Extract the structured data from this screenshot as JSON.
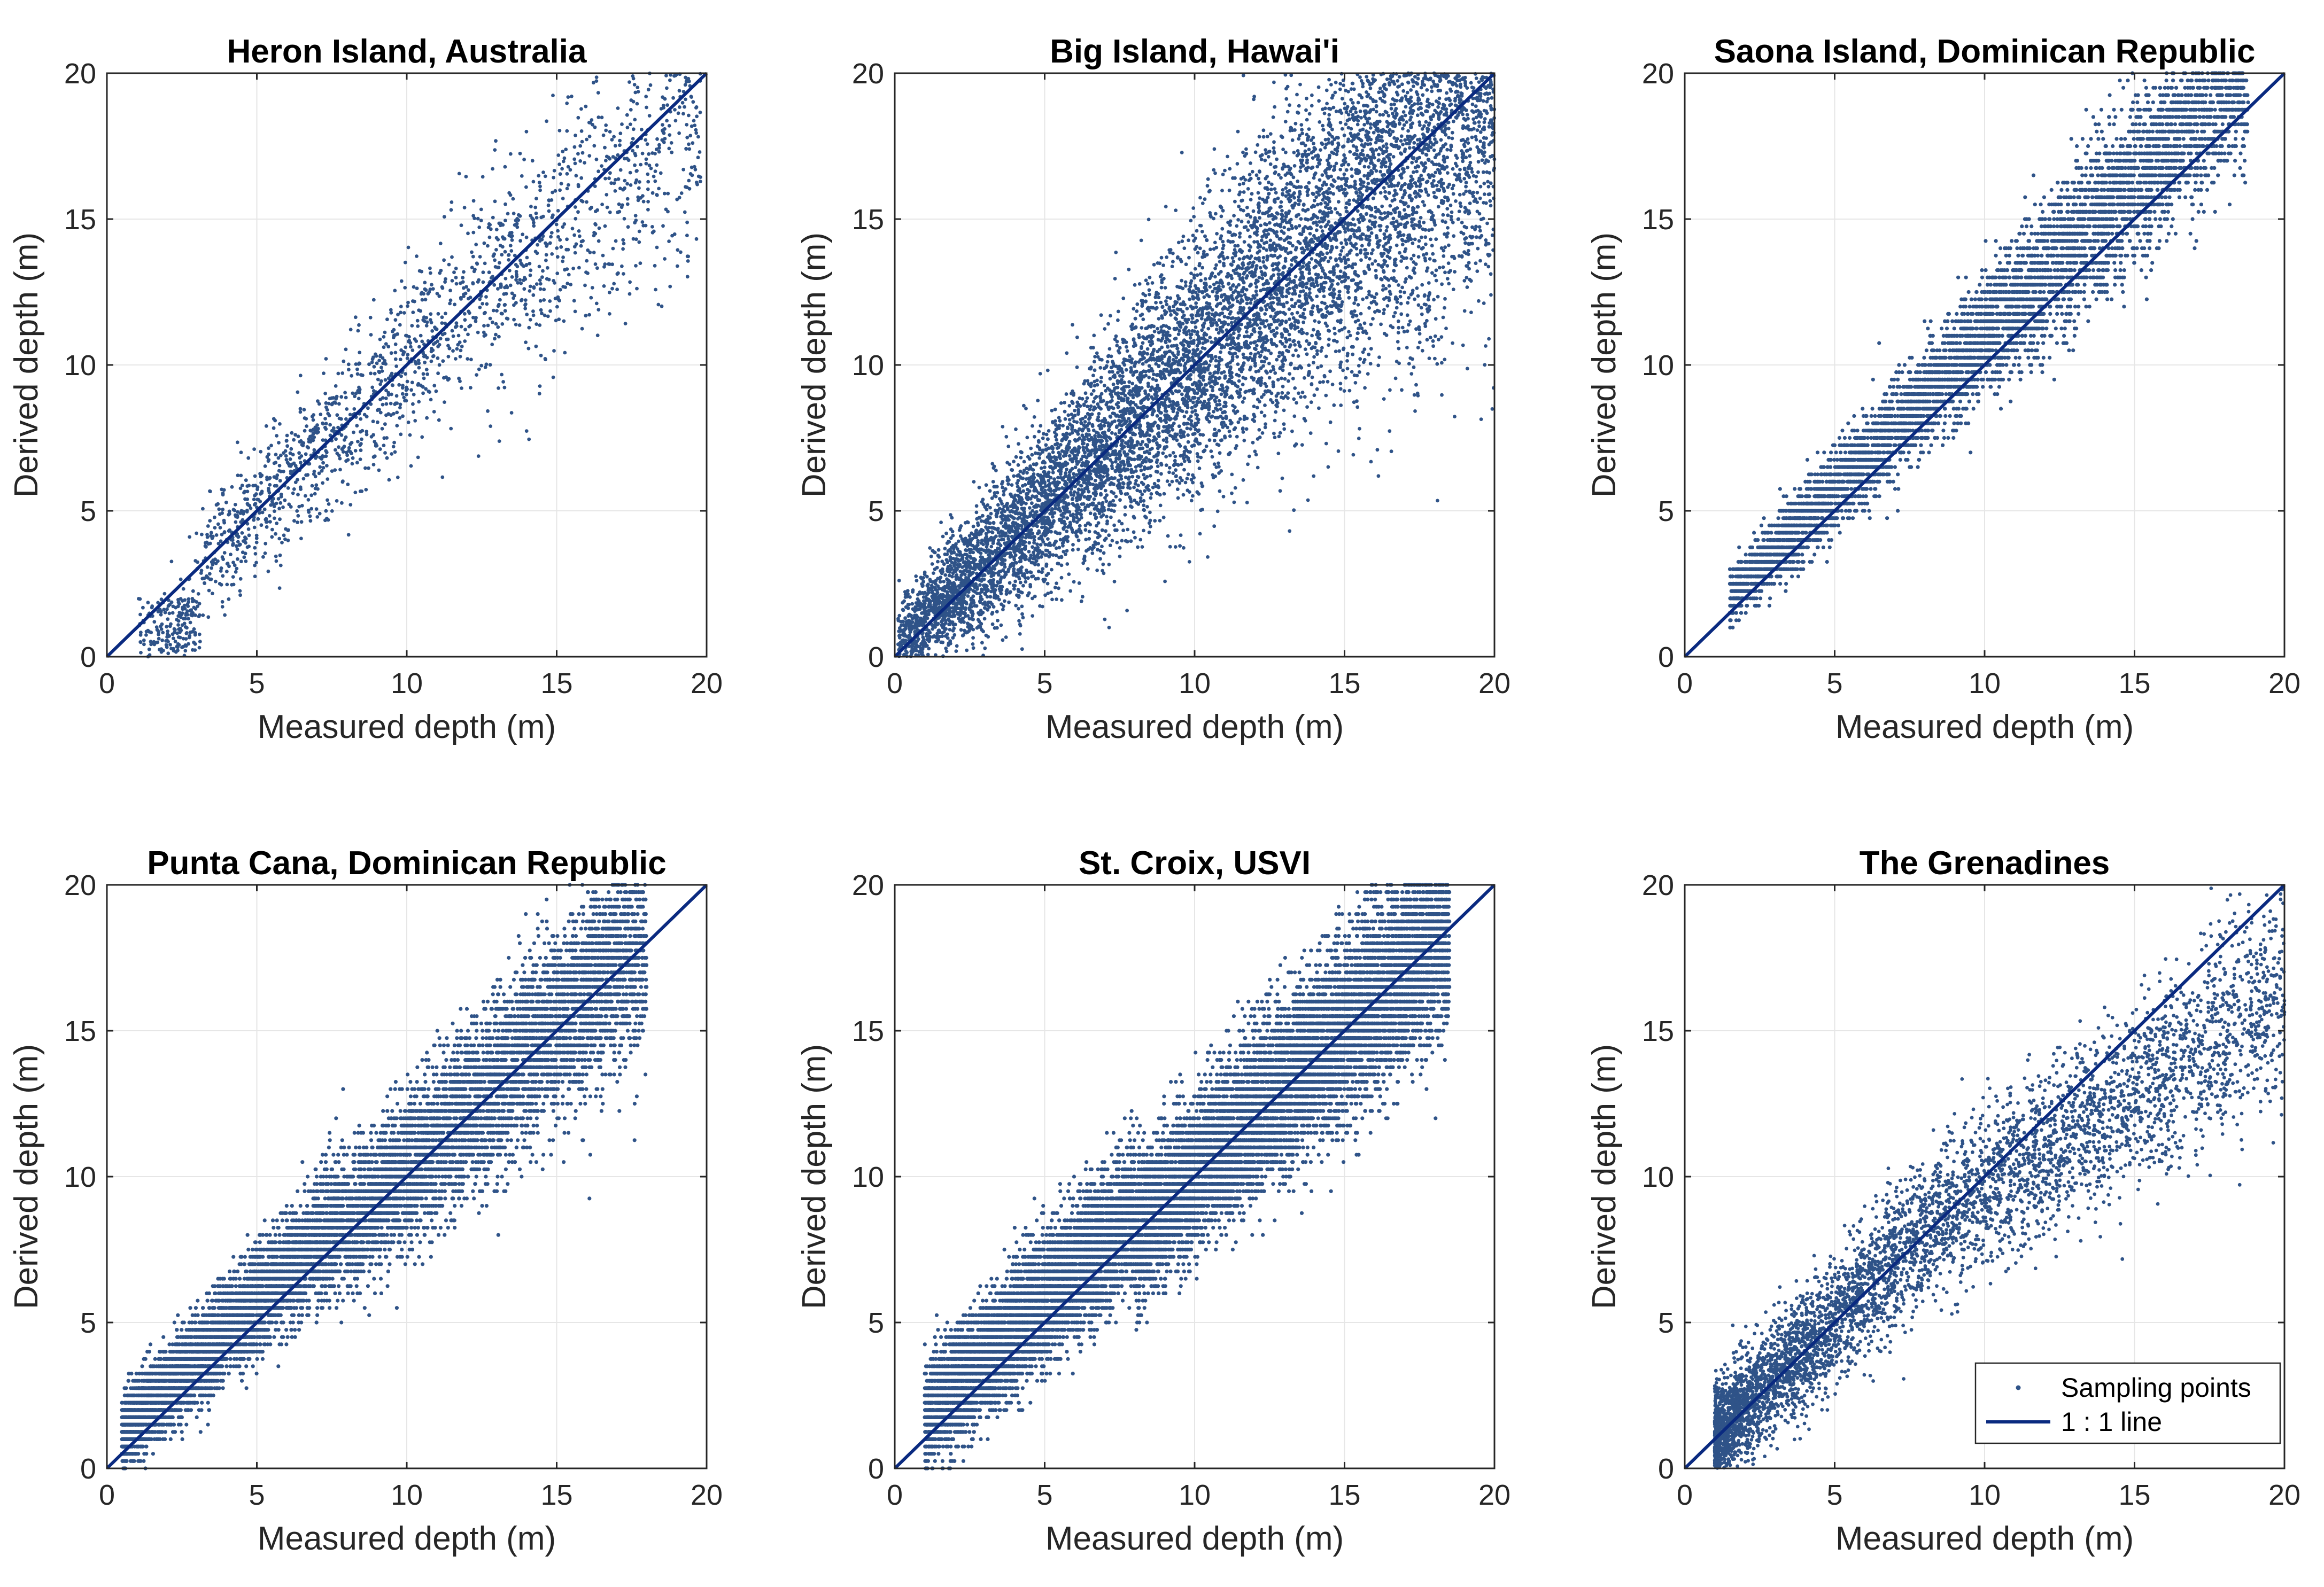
{
  "figure": {
    "colors": {
      "points": "#2f5388",
      "line": "#0a2a80",
      "grid": "#e6e6e6",
      "axes": "#262626"
    }
  },
  "legend": {
    "points_label": "Sampling points",
    "line_label": "1 : 1 line",
    "location": "bottom-right of 'The Grenadines' panel"
  },
  "chart_data": [
    {
      "type": "scatter",
      "title": "Heron Island, Australia",
      "xlabel": "Measured depth (m)",
      "ylabel": "Derived depth (m)",
      "xlim": [
        0,
        20
      ],
      "ylim": [
        0,
        20
      ],
      "xticks": [
        "0",
        "5",
        "10",
        "15",
        "20"
      ],
      "yticks": [
        "0",
        "5",
        "10",
        "15",
        "20"
      ],
      "grid": true,
      "series": [
        {
          "name": "Sampling points",
          "density": "about 2000 points",
          "measured_range": [
            1,
            20
          ],
          "trend": "close to 1:1, clustered near 0-2 m derived at 1-3 m measured, scattered below line above 15 m"
        },
        {
          "name": "1 : 1 line",
          "x": [
            0,
            20
          ],
          "y": [
            0,
            20
          ]
        }
      ]
    },
    {
      "type": "scatter",
      "title": "Big Island, Hawai'i",
      "xlabel": "Measured depth (m)",
      "ylabel": "Derived depth (m)",
      "xlim": [
        0,
        20
      ],
      "ylim": [
        0,
        20
      ],
      "xticks": [
        "0",
        "5",
        "10",
        "15",
        "20"
      ],
      "yticks": [
        "0",
        "5",
        "10",
        "15",
        "20"
      ],
      "grid": true,
      "series": [
        {
          "name": "Sampling points",
          "density": "very dense",
          "measured_range": [
            0,
            20
          ],
          "trend": "along 1:1 line, spread widens with depth"
        },
        {
          "name": "1 : 1 line",
          "x": [
            0,
            20
          ],
          "y": [
            0,
            20
          ]
        }
      ]
    },
    {
      "type": "scatter",
      "title": "Saona Island, Dominican Republic",
      "xlabel": "Measured depth (m)",
      "ylabel": "Derived depth (m)",
      "xlim": [
        0,
        20
      ],
      "ylim": [
        0,
        20
      ],
      "xticks": [
        "0",
        "5",
        "10",
        "15",
        "20"
      ],
      "yticks": [
        "0",
        "5",
        "10",
        "15",
        "20"
      ],
      "grid": true,
      "series": [
        {
          "name": "Sampling points",
          "density": "dense, horizontal banding",
          "measured_range": [
            1.5,
            19
          ],
          "trend": "slightly above 1:1 line (overestimation)"
        },
        {
          "name": "1 : 1 line",
          "x": [
            0,
            20
          ],
          "y": [
            0,
            20
          ]
        }
      ]
    },
    {
      "type": "scatter",
      "title": "Punta Cana, Dominican Republic",
      "xlabel": "Measured depth (m)",
      "ylabel": "Derived depth (m)",
      "xlim": [
        0,
        20
      ],
      "ylim": [
        0,
        20
      ],
      "xticks": [
        "0",
        "5",
        "10",
        "15",
        "20"
      ],
      "yticks": [
        "0",
        "5",
        "10",
        "15",
        "20"
      ],
      "grid": true,
      "series": [
        {
          "name": "Sampling points",
          "density": "very dense, horizontal banding",
          "measured_range": [
            0.5,
            18
          ],
          "trend": "along 1:1 line, slightly above at mid depths"
        },
        {
          "name": "1 : 1 line",
          "x": [
            0,
            20
          ],
          "y": [
            0,
            20
          ]
        }
      ]
    },
    {
      "type": "scatter",
      "title": "St. Croix, USVI",
      "xlabel": "Measured depth (m)",
      "ylabel": "Derived depth (m)",
      "xlim": [
        0,
        20
      ],
      "ylim": [
        0,
        20
      ],
      "xticks": [
        "0",
        "5",
        "10",
        "15",
        "20"
      ],
      "yticks": [
        "0",
        "5",
        "10",
        "15",
        "20"
      ],
      "grid": true,
      "series": [
        {
          "name": "Sampling points",
          "density": "extremely dense, horizontal banding",
          "measured_range": [
            1,
            18.5
          ],
          "trend": "tight band along 1:1 line, slightly above at shallow depths"
        },
        {
          "name": "1 : 1 line",
          "x": [
            0,
            20
          ],
          "y": [
            0,
            20
          ]
        }
      ]
    },
    {
      "type": "scatter",
      "title": "The Grenadines",
      "xlabel": "Measured depth (m)",
      "ylabel": "Derived depth (m)",
      "xlim": [
        0,
        20
      ],
      "ylim": [
        0,
        20
      ],
      "xticks": [
        "0",
        "5",
        "10",
        "15",
        "20"
      ],
      "yticks": [
        "0",
        "5",
        "10",
        "15",
        "20"
      ],
      "grid": true,
      "series": [
        {
          "name": "Sampling points",
          "density": "moderate",
          "measured_range": [
            1,
            20
          ],
          "trend": "along 1:1 line, increasingly below it beyond 10 m (derived ~14 m at 20 m)"
        },
        {
          "name": "1 : 1 line",
          "x": [
            0,
            20
          ],
          "y": [
            0,
            20
          ]
        }
      ]
    }
  ]
}
